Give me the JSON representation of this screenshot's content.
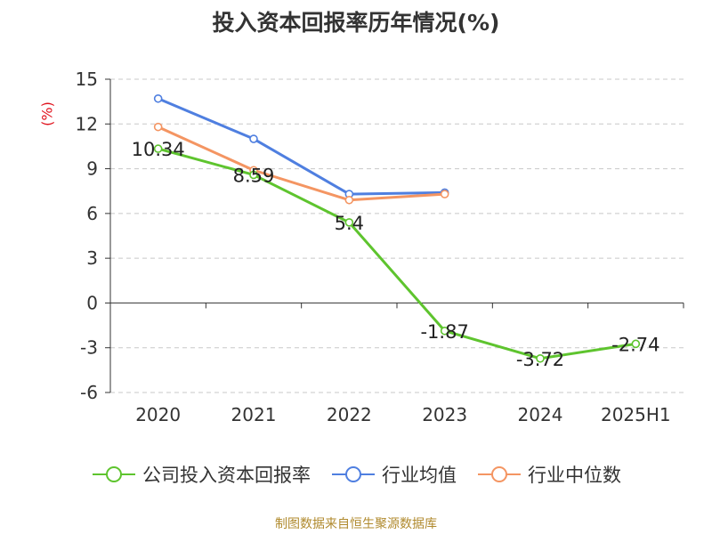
{
  "chart_data": {
    "type": "line",
    "title": "投入资本回报率历年情况(%)",
    "ylabel": "(%)",
    "categories": [
      "2020",
      "2021",
      "2022",
      "2023",
      "2024",
      "2025H1"
    ],
    "yticks": [
      "15",
      "12",
      "9",
      "6",
      "3",
      "0",
      "-3",
      "-6"
    ],
    "ytick_values": [
      15,
      12,
      9,
      6,
      3,
      0,
      -3,
      -6
    ],
    "ylim": [
      -6,
      15
    ],
    "grid": true,
    "legend_position": "bottom",
    "series": [
      {
        "name": "公司投入资本回报率",
        "color": "#5ec42e",
        "values": [
          10.34,
          8.59,
          5.4,
          -1.87,
          -3.72,
          -2.74
        ],
        "labels": [
          "10.34",
          "8.59",
          "5.4",
          "-1.87",
          "-3.72",
          "-2.74"
        ]
      },
      {
        "name": "行业均值",
        "color": "#4f7fe0",
        "values": [
          13.7,
          11.0,
          7.3,
          7.4,
          null,
          null
        ]
      },
      {
        "name": "行业中位数",
        "color": "#f49562",
        "values": [
          11.8,
          8.9,
          6.9,
          7.3,
          null,
          null
        ]
      }
    ]
  },
  "source": "制图数据来自恒生聚源数据库"
}
